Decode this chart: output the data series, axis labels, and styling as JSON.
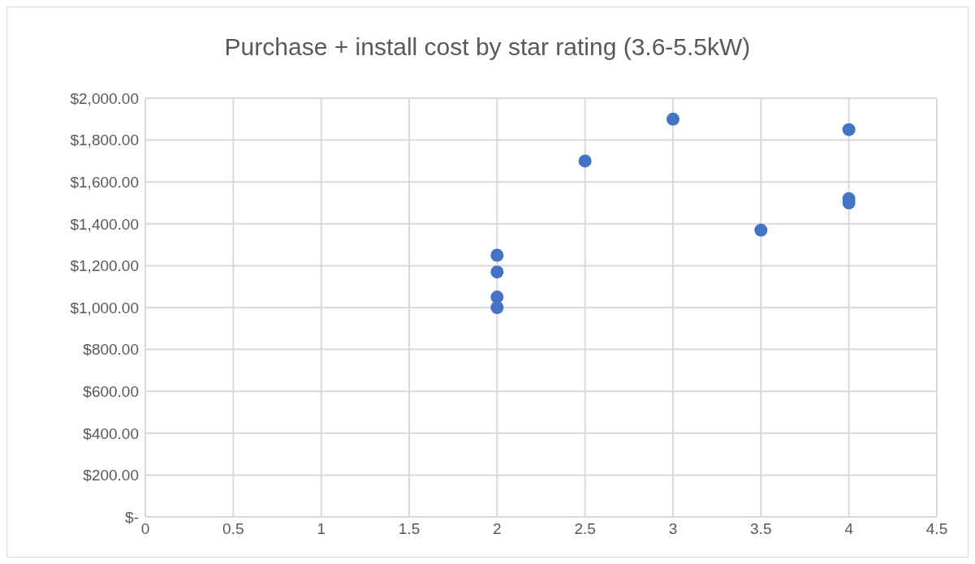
{
  "chart_data": {
    "type": "scatter",
    "title": "Purchase + install cost by star rating (3.6-5.5kW)",
    "x": [
      2,
      2,
      2,
      2,
      2.5,
      3,
      3.5,
      4,
      4,
      4
    ],
    "values": [
      1250,
      1170,
      1050,
      1000,
      1700,
      1900,
      1370,
      1850,
      1520,
      1500
    ],
    "color": "#4472c4",
    "marker": "circle",
    "xlim": [
      0,
      4.5
    ],
    "xticks": [
      0,
      0.5,
      1,
      1.5,
      2,
      2.5,
      3,
      3.5,
      4,
      4.5
    ],
    "ylim": [
      0,
      2000
    ],
    "yticks": [
      {
        "value": 0,
        "label": "$-"
      },
      {
        "value": 200,
        "label": "$200.00"
      },
      {
        "value": 400,
        "label": "$400.00"
      },
      {
        "value": 600,
        "label": "$600.00"
      },
      {
        "value": 800,
        "label": "$800.00"
      },
      {
        "value": 1000,
        "label": "$1,000.00"
      },
      {
        "value": 1200,
        "label": "$1,200.00"
      },
      {
        "value": 1400,
        "label": "$1,400.00"
      },
      {
        "value": 1600,
        "label": "$1,600.00"
      },
      {
        "value": 1800,
        "label": "$1,800.00"
      },
      {
        "value": 2000,
        "label": "$2,000.00"
      }
    ],
    "grid": true,
    "legend": false
  }
}
